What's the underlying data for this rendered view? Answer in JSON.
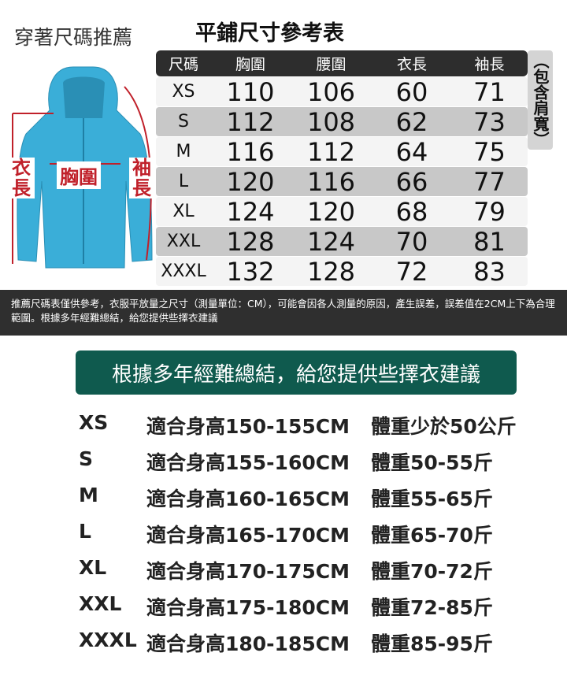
{
  "left_title": "穿著尺碼推薦",
  "table_title": "平鋪尺寸參考表",
  "headers": [
    "尺碼",
    "胸圍",
    "腰圍",
    "衣長",
    "袖長"
  ],
  "side_note": "（包含肩寬）",
  "rows": [
    [
      "XS",
      "110",
      "106",
      "60",
      "71"
    ],
    [
      "S",
      "112",
      "108",
      "62",
      "73"
    ],
    [
      "M",
      "116",
      "112",
      "64",
      "75"
    ],
    [
      "L",
      "120",
      "116",
      "66",
      "77"
    ],
    [
      "XL",
      "124",
      "120",
      "68",
      "79"
    ],
    [
      "XXL",
      "128",
      "124",
      "70",
      "81"
    ],
    [
      "XXXL",
      "132",
      "128",
      "72",
      "83"
    ]
  ],
  "jacket_labels": {
    "length": "衣長",
    "chest": "胸圍",
    "sleeve": "袖長"
  },
  "jacket_color": "#3aaed8",
  "disclaimer": "推薦尺碼表僅供參考，衣服平放量之尺寸（測量單位：CM），可能會因各人測量的原因，產生誤差，誤差值在2CM上下為合理範圍。根據多年經難總結，給您提供些擇衣建議",
  "banner": "根據多年經難總結，給您提供些擇衣建議",
  "recommendations": [
    [
      "XS",
      "適合身高150-155CM",
      "體重少於50公斤"
    ],
    [
      "S",
      "適合身高155-160CM",
      "體重50-55斤"
    ],
    [
      "M",
      "適合身高160-165CM",
      "體重55-65斤"
    ],
    [
      "L",
      "適合身高165-170CM",
      "體重65-70斤"
    ],
    [
      "XL",
      "適合身高170-175CM",
      "體重70-72斤"
    ],
    [
      "XXL",
      "適合身高175-180CM",
      "體重72-85斤"
    ],
    [
      "XXXL",
      "適合身高180-185CM",
      "體重85-95斤"
    ]
  ]
}
